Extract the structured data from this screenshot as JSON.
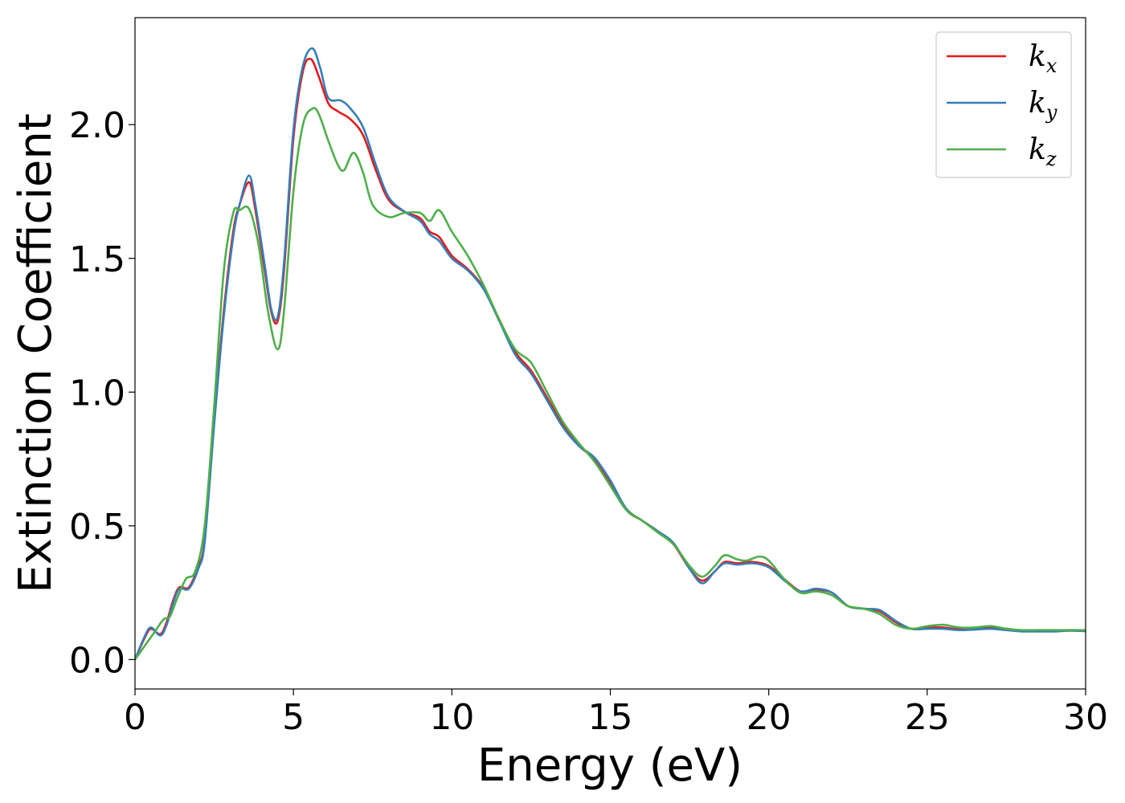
{
  "chart_data": {
    "type": "line",
    "xlabel": "Energy (eV)",
    "ylabel": "Extinction Coefficient",
    "xlim": [
      0,
      30
    ],
    "ylim": [
      -0.11,
      2.4
    ],
    "xticks": [
      0,
      5,
      10,
      15,
      20,
      25,
      30
    ],
    "xtick_labels": [
      "0",
      "5",
      "10",
      "15",
      "20",
      "25",
      "30"
    ],
    "yticks": [
      0.0,
      0.5,
      1.0,
      1.5,
      2.0
    ],
    "ytick_labels": [
      "0.0",
      "0.5",
      "1.0",
      "1.5",
      "2.0"
    ],
    "grid": false,
    "legend_position": "top-right",
    "series": [
      {
        "name": "k_x",
        "label_main": "k",
        "label_sub": "x",
        "color": "#e41a1c",
        "points": [
          [
            0,
            0
          ],
          [
            0.3,
            0.08
          ],
          [
            0.5,
            0.115
          ],
          [
            0.8,
            0.095
          ],
          [
            1.0,
            0.14
          ],
          [
            1.2,
            0.22
          ],
          [
            1.4,
            0.27
          ],
          [
            1.7,
            0.27
          ],
          [
            2.0,
            0.35
          ],
          [
            2.2,
            0.45
          ],
          [
            2.5,
            0.9
          ],
          [
            2.8,
            1.3
          ],
          [
            3.1,
            1.6
          ],
          [
            3.3,
            1.7
          ],
          [
            3.6,
            1.785
          ],
          [
            3.8,
            1.68
          ],
          [
            4.1,
            1.45
          ],
          [
            4.3,
            1.3
          ],
          [
            4.5,
            1.265
          ],
          [
            4.7,
            1.45
          ],
          [
            5.0,
            1.95
          ],
          [
            5.3,
            2.2
          ],
          [
            5.55,
            2.245
          ],
          [
            5.8,
            2.18
          ],
          [
            6.1,
            2.08
          ],
          [
            6.4,
            2.05
          ],
          [
            6.8,
            2.02
          ],
          [
            7.2,
            1.96
          ],
          [
            7.6,
            1.83
          ],
          [
            8.0,
            1.72
          ],
          [
            8.5,
            1.675
          ],
          [
            9.0,
            1.65
          ],
          [
            9.3,
            1.6
          ],
          [
            9.6,
            1.58
          ],
          [
            10.0,
            1.51
          ],
          [
            10.5,
            1.46
          ],
          [
            11.0,
            1.39
          ],
          [
            11.5,
            1.27
          ],
          [
            12.0,
            1.15
          ],
          [
            12.5,
            1.08
          ],
          [
            13.0,
            0.98
          ],
          [
            13.5,
            0.88
          ],
          [
            14.0,
            0.8
          ],
          [
            14.5,
            0.75
          ],
          [
            15.0,
            0.66
          ],
          [
            15.5,
            0.56
          ],
          [
            16.0,
            0.52
          ],
          [
            16.5,
            0.48
          ],
          [
            17.0,
            0.43
          ],
          [
            17.5,
            0.34
          ],
          [
            17.9,
            0.295
          ],
          [
            18.3,
            0.33
          ],
          [
            18.6,
            0.365
          ],
          [
            19.0,
            0.36
          ],
          [
            19.5,
            0.365
          ],
          [
            20.0,
            0.35
          ],
          [
            20.5,
            0.3
          ],
          [
            21.0,
            0.255
          ],
          [
            21.5,
            0.26
          ],
          [
            22.0,
            0.25
          ],
          [
            22.5,
            0.2
          ],
          [
            23.0,
            0.19
          ],
          [
            23.5,
            0.18
          ],
          [
            24.0,
            0.14
          ],
          [
            24.5,
            0.115
          ],
          [
            25.0,
            0.12
          ],
          [
            25.5,
            0.12
          ],
          [
            26.0,
            0.113
          ],
          [
            26.5,
            0.115
          ],
          [
            27.0,
            0.12
          ],
          [
            27.5,
            0.115
          ],
          [
            28.0,
            0.108
          ],
          [
            28.5,
            0.108
          ],
          [
            29.0,
            0.107
          ],
          [
            29.5,
            0.11
          ],
          [
            30.0,
            0.108
          ]
        ]
      },
      {
        "name": "k_y",
        "label_main": "k",
        "label_sub": "y",
        "color": "#377eb8",
        "points": [
          [
            0,
            0
          ],
          [
            0.3,
            0.085
          ],
          [
            0.5,
            0.12
          ],
          [
            0.8,
            0.09
          ],
          [
            1.0,
            0.13
          ],
          [
            1.2,
            0.21
          ],
          [
            1.4,
            0.265
          ],
          [
            1.7,
            0.265
          ],
          [
            2.0,
            0.34
          ],
          [
            2.2,
            0.44
          ],
          [
            2.5,
            0.88
          ],
          [
            2.8,
            1.28
          ],
          [
            3.1,
            1.58
          ],
          [
            3.3,
            1.7
          ],
          [
            3.6,
            1.81
          ],
          [
            3.8,
            1.7
          ],
          [
            4.1,
            1.47
          ],
          [
            4.3,
            1.31
          ],
          [
            4.5,
            1.28
          ],
          [
            4.7,
            1.48
          ],
          [
            5.0,
            1.98
          ],
          [
            5.3,
            2.22
          ],
          [
            5.6,
            2.285
          ],
          [
            5.85,
            2.21
          ],
          [
            6.1,
            2.1
          ],
          [
            6.5,
            2.09
          ],
          [
            6.8,
            2.06
          ],
          [
            7.2,
            1.99
          ],
          [
            7.6,
            1.85
          ],
          [
            8.0,
            1.73
          ],
          [
            8.5,
            1.675
          ],
          [
            9.0,
            1.64
          ],
          [
            9.3,
            1.59
          ],
          [
            9.6,
            1.565
          ],
          [
            10.0,
            1.5
          ],
          [
            10.5,
            1.455
          ],
          [
            11.0,
            1.385
          ],
          [
            11.5,
            1.265
          ],
          [
            12.0,
            1.14
          ],
          [
            12.5,
            1.07
          ],
          [
            13.0,
            0.97
          ],
          [
            13.5,
            0.87
          ],
          [
            14.0,
            0.8
          ],
          [
            14.5,
            0.755
          ],
          [
            15.0,
            0.67
          ],
          [
            15.5,
            0.565
          ],
          [
            16.0,
            0.52
          ],
          [
            16.5,
            0.48
          ],
          [
            17.0,
            0.435
          ],
          [
            17.5,
            0.34
          ],
          [
            17.9,
            0.285
          ],
          [
            18.3,
            0.33
          ],
          [
            18.6,
            0.36
          ],
          [
            19.0,
            0.355
          ],
          [
            19.5,
            0.36
          ],
          [
            20.0,
            0.345
          ],
          [
            20.5,
            0.295
          ],
          [
            21.0,
            0.255
          ],
          [
            21.5,
            0.265
          ],
          [
            22.0,
            0.25
          ],
          [
            22.5,
            0.2
          ],
          [
            23.0,
            0.19
          ],
          [
            23.5,
            0.185
          ],
          [
            24.0,
            0.145
          ],
          [
            24.5,
            0.115
          ],
          [
            25.0,
            0.115
          ],
          [
            25.5,
            0.115
          ],
          [
            26.0,
            0.11
          ],
          [
            26.5,
            0.112
          ],
          [
            27.0,
            0.115
          ],
          [
            27.5,
            0.11
          ],
          [
            28.0,
            0.105
          ],
          [
            28.5,
            0.105
          ],
          [
            29.0,
            0.105
          ],
          [
            29.5,
            0.108
          ],
          [
            30.0,
            0.106
          ]
        ]
      },
      {
        "name": "k_z",
        "label_main": "k",
        "label_sub": "z",
        "color": "#4daf4a",
        "points": [
          [
            0,
            0
          ],
          [
            0.3,
            0.05
          ],
          [
            0.6,
            0.1
          ],
          [
            0.9,
            0.15
          ],
          [
            1.1,
            0.16
          ],
          [
            1.3,
            0.22
          ],
          [
            1.6,
            0.3
          ],
          [
            1.9,
            0.33
          ],
          [
            2.2,
            0.5
          ],
          [
            2.5,
            0.95
          ],
          [
            2.8,
            1.45
          ],
          [
            3.1,
            1.67
          ],
          [
            3.3,
            1.68
          ],
          [
            3.6,
            1.685
          ],
          [
            3.9,
            1.55
          ],
          [
            4.2,
            1.3
          ],
          [
            4.5,
            1.16
          ],
          [
            4.7,
            1.3
          ],
          [
            5.0,
            1.75
          ],
          [
            5.3,
            2.0
          ],
          [
            5.6,
            2.06
          ],
          [
            5.8,
            2.04
          ],
          [
            6.1,
            1.94
          ],
          [
            6.4,
            1.85
          ],
          [
            6.6,
            1.83
          ],
          [
            6.9,
            1.895
          ],
          [
            7.2,
            1.82
          ],
          [
            7.5,
            1.7
          ],
          [
            8.0,
            1.655
          ],
          [
            8.5,
            1.67
          ],
          [
            9.0,
            1.67
          ],
          [
            9.3,
            1.64
          ],
          [
            9.6,
            1.68
          ],
          [
            10.0,
            1.6
          ],
          [
            10.5,
            1.51
          ],
          [
            11.0,
            1.4
          ],
          [
            11.5,
            1.27
          ],
          [
            12.0,
            1.16
          ],
          [
            12.5,
            1.11
          ],
          [
            13.0,
            1.0
          ],
          [
            13.5,
            0.89
          ],
          [
            14.0,
            0.81
          ],
          [
            14.5,
            0.74
          ],
          [
            15.0,
            0.65
          ],
          [
            15.5,
            0.56
          ],
          [
            16.0,
            0.52
          ],
          [
            16.5,
            0.475
          ],
          [
            17.0,
            0.43
          ],
          [
            17.5,
            0.35
          ],
          [
            17.9,
            0.31
          ],
          [
            18.3,
            0.35
          ],
          [
            18.6,
            0.39
          ],
          [
            19.0,
            0.375
          ],
          [
            19.3,
            0.37
          ],
          [
            19.7,
            0.385
          ],
          [
            20.0,
            0.37
          ],
          [
            20.5,
            0.3
          ],
          [
            21.0,
            0.25
          ],
          [
            21.5,
            0.255
          ],
          [
            22.0,
            0.24
          ],
          [
            22.5,
            0.2
          ],
          [
            23.0,
            0.19
          ],
          [
            23.5,
            0.17
          ],
          [
            24.0,
            0.13
          ],
          [
            24.5,
            0.115
          ],
          [
            25.0,
            0.125
          ],
          [
            25.5,
            0.13
          ],
          [
            26.0,
            0.12
          ],
          [
            26.5,
            0.12
          ],
          [
            27.0,
            0.125
          ],
          [
            27.5,
            0.115
          ],
          [
            28.0,
            0.11
          ],
          [
            28.5,
            0.11
          ],
          [
            29.0,
            0.11
          ],
          [
            29.5,
            0.11
          ],
          [
            30.0,
            0.11
          ]
        ]
      }
    ]
  }
}
